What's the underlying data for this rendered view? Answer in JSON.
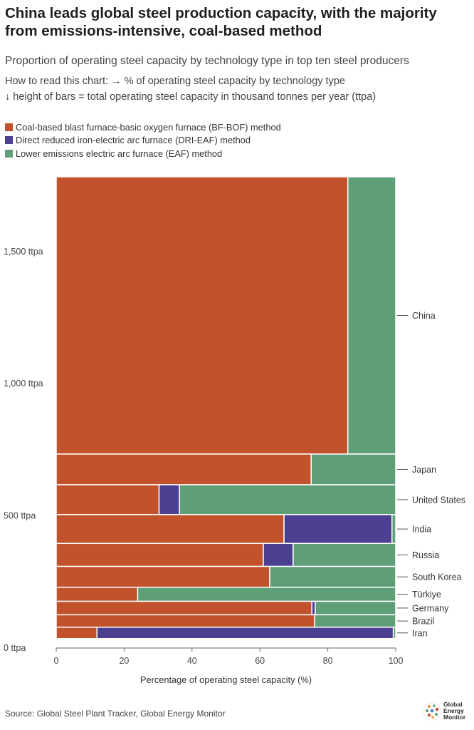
{
  "header": {
    "title": "China leads global steel production capacity, with the majority from emissions-intensive, coal-based method",
    "subtitle": "Proportion of operating steel capacity by technology type in top ten steel producers",
    "how_to_read_1": "How to read this chart: → % of operating steel capacity by technology type",
    "how_to_read_2": "↓ height of bars = total operating steel capacity in thousand tonnes per year (ttpa)"
  },
  "legend": [
    {
      "label": "Coal-based blast furnace-basic oxygen furnace (BF-BOF) method",
      "color": "#c1522c"
    },
    {
      "label": "Direct reduced iron-electric arc furnace (DRI-EAF) method",
      "color": "#4b3f92"
    },
    {
      "label": "Lower emissions electric arc furnace (EAF) method",
      "color": "#5e9f78"
    }
  ],
  "chart_data": {
    "type": "marimekko",
    "xlabel": "Percentage of operating steel capacity (%)",
    "xlim": [
      0,
      100
    ],
    "x_ticks": [
      "0",
      "20",
      "40",
      "60",
      "80",
      "100"
    ],
    "ylim": [
      0,
      1780
    ],
    "y_ticks": [
      {
        "value": 0,
        "label": "0 ttpa"
      },
      {
        "value": 500,
        "label": "500 ttpa"
      },
      {
        "value": 1000,
        "label": "1,000 ttpa"
      },
      {
        "value": 1500,
        "label": "1,500 ttpa"
      }
    ],
    "series": [
      {
        "name": "Coal-based blast furnace-basic oxygen furnace (BF-BOF) method",
        "color": "#c1522c"
      },
      {
        "name": "Direct reduced iron-electric arc furnace (DRI-EAF) method",
        "color": "#4b3f92"
      },
      {
        "name": "Lower emissions electric arc furnace (EAF) method",
        "color": "#5e9f78"
      }
    ],
    "countries": [
      {
        "name": "China",
        "capacity": 1049,
        "shares": [
          85.9,
          0,
          14.1
        ]
      },
      {
        "name": "Japan",
        "capacity": 116,
        "shares": [
          75.1,
          0,
          24.9
        ]
      },
      {
        "name": "United States",
        "capacity": 113,
        "shares": [
          30.3,
          6.0,
          63.7
        ]
      },
      {
        "name": "India",
        "capacity": 109,
        "shares": [
          67.1,
          31.8,
          1.1
        ]
      },
      {
        "name": "Russia",
        "capacity": 87,
        "shares": [
          61.0,
          8.8,
          30.2
        ]
      },
      {
        "name": "South Korea",
        "capacity": 79,
        "shares": [
          62.9,
          0,
          37.1
        ]
      },
      {
        "name": "Türkiye",
        "capacity": 53,
        "shares": [
          24.0,
          0,
          76.0
        ]
      },
      {
        "name": "Germany",
        "capacity": 51,
        "shares": [
          75.3,
          1.0,
          23.7
        ]
      },
      {
        "name": "Brazil",
        "capacity": 47,
        "shares": [
          76.1,
          0,
          23.9
        ]
      },
      {
        "name": "Iran",
        "capacity": 43,
        "shares": [
          12.0,
          87.3,
          0.7
        ]
      }
    ]
  },
  "source": "Source: Global Steel Plant Tracker, Global Energy Monitor",
  "logo": {
    "line1": "Global",
    "line2": "Energy",
    "line3": "Monitor"
  }
}
